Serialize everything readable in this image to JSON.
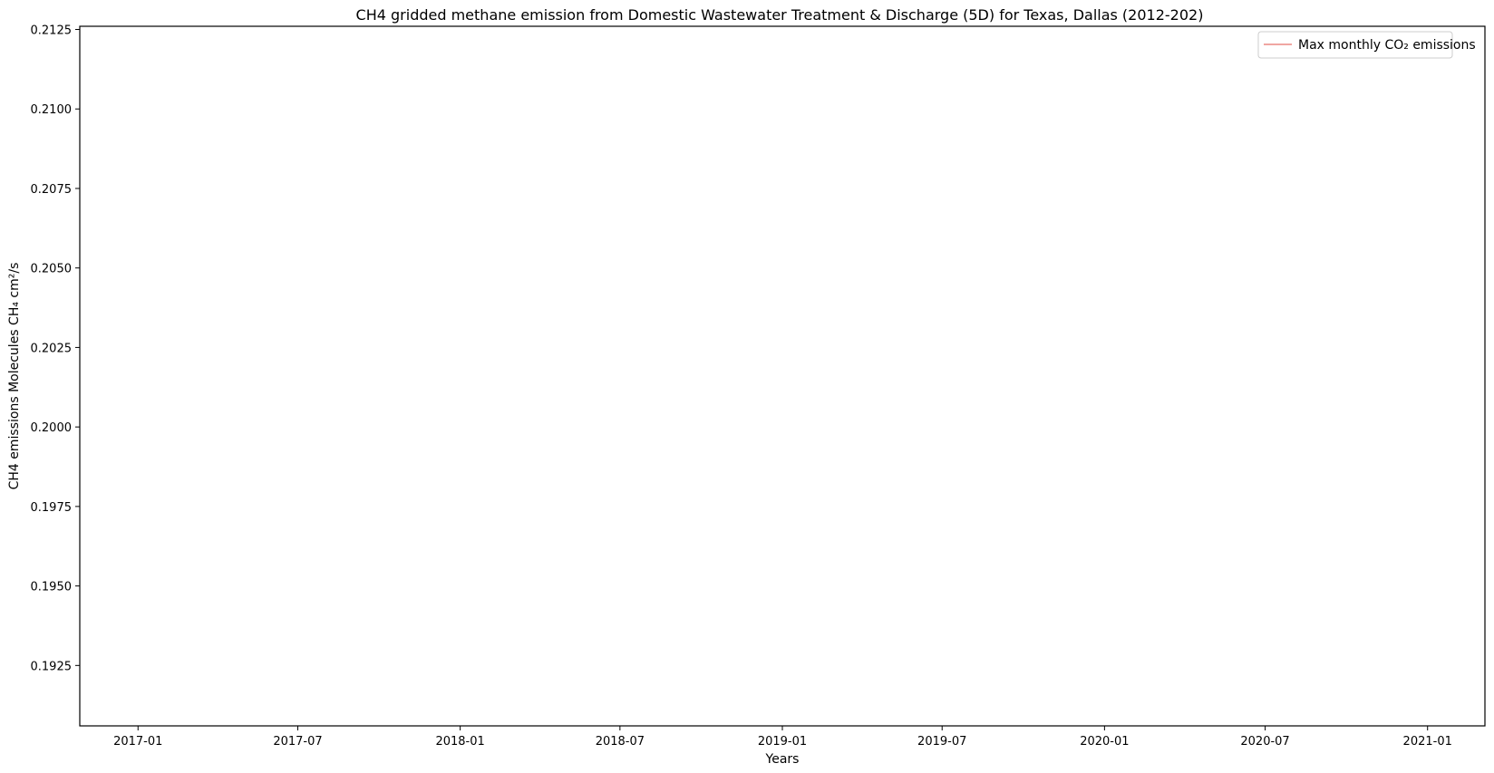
{
  "chart_data": {
    "type": "line",
    "title": "CH4 gridded methane emission from Domestic Wastewater Treatment & Discharge (5D) for Texas, Dallas (2012-202)",
    "xlabel": "Years",
    "ylabel": "CH4 emissions Molecules CH₄ cm²/s",
    "x_ticks": [
      "2017-01",
      "2017-07",
      "2018-01",
      "2018-07",
      "2019-01",
      "2019-07",
      "2020-01",
      "2020-07",
      "2021-01"
    ],
    "y_ticks": [
      "0.1925",
      "0.1950",
      "0.1975",
      "0.2000",
      "0.2025",
      "0.2050",
      "0.2075",
      "0.2100",
      "0.2125"
    ],
    "xlim": [
      "2016-10-27",
      "2021-03-07"
    ],
    "ylim": [
      0.1906,
      0.2126
    ],
    "grid": false,
    "legend_position": "top-right",
    "series": [
      {
        "name": "Max monthly CO₂ emissions",
        "color": "#e8706b",
        "x": [],
        "values": []
      }
    ]
  }
}
